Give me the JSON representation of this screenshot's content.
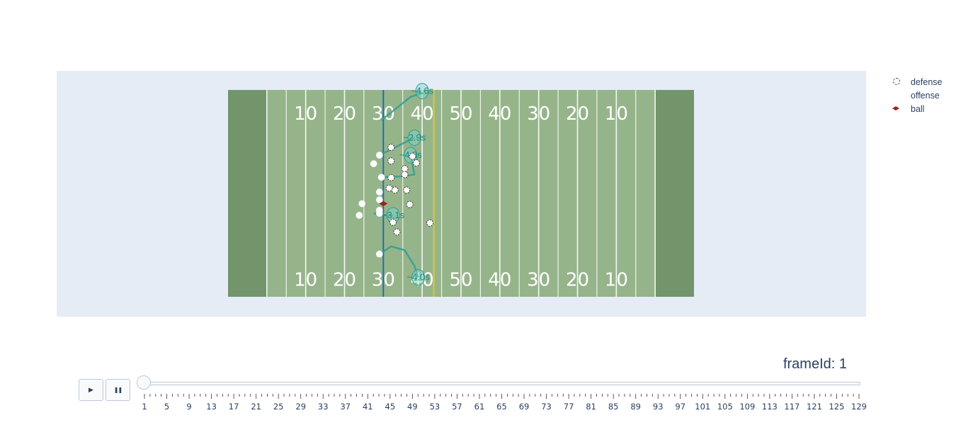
{
  "chart_data": {
    "type": "scatter",
    "title": "",
    "field": {
      "yard_numbers": [
        "10",
        "20",
        "30",
        "40",
        "50",
        "40",
        "30",
        "20",
        "10"
      ],
      "line_of_scrimmage": 40,
      "first_down_line": 53,
      "x_range": [
        0,
        120
      ],
      "y_range": [
        0,
        53.3
      ]
    },
    "series": [
      {
        "name": "defense",
        "symbol": "circle-open-dot",
        "points": [
          [
            42,
            38.5
          ],
          [
            42,
            35
          ],
          [
            45.5,
            33
          ],
          [
            48.5,
            34.5
          ],
          [
            42,
            30.7
          ],
          [
            43,
            27.5
          ],
          [
            46,
            27.5
          ],
          [
            46.8,
            23.8
          ],
          [
            45.5,
            31.5
          ],
          [
            41.5,
            28
          ],
          [
            42.5,
            19.2
          ],
          [
            43.5,
            16.7
          ],
          [
            52,
            19
          ],
          [
            47.5,
            36.2
          ]
        ]
      },
      {
        "name": "offense",
        "symbol": "circle",
        "points": [
          [
            39,
            36.5
          ],
          [
            37.5,
            34.3
          ],
          [
            39.5,
            30.8
          ],
          [
            39,
            27
          ],
          [
            39,
            25
          ],
          [
            34.5,
            24
          ],
          [
            39,
            22.3
          ],
          [
            39,
            21.5
          ],
          [
            33.8,
            21
          ],
          [
            39,
            11
          ]
        ]
      },
      {
        "name": "ball",
        "symbol": "diamond",
        "color": "#a02020",
        "points": [
          [
            40,
            24
          ]
        ]
      }
    ],
    "routes": [
      {
        "label": "~4.6s",
        "start": [
          39.5,
          45.5
        ],
        "end": [
          50,
          53
        ],
        "path": [
          [
            39.5,
            45.5
          ],
          [
            42,
            47.5
          ],
          [
            44.5,
            49.5
          ],
          [
            47,
            51.5
          ],
          [
            50,
            52.5
          ]
        ]
      },
      {
        "label": "~2.9s",
        "start": [
          39,
          36.5
        ],
        "end": [
          48,
          41
        ],
        "path": [
          [
            39,
            36.5
          ],
          [
            42,
            38
          ],
          [
            45,
            39.5
          ],
          [
            48,
            41
          ]
        ]
      },
      {
        "label": "~4.0s",
        "start": [
          39,
          30.8
        ],
        "end": [
          47,
          36.5
        ],
        "path": [
          [
            39,
            30.8
          ],
          [
            44,
            31
          ],
          [
            48,
            31.5
          ],
          [
            47.5,
            34
          ],
          [
            47,
            36.5
          ]
        ]
      },
      {
        "label": "~3.1s",
        "start": [
          37.5,
          21.5
        ],
        "end": [
          42.5,
          21
        ],
        "path": [
          [
            37.5,
            21.5
          ],
          [
            40.5,
            21
          ],
          [
            42.5,
            21
          ]
        ]
      },
      {
        "label": "~4.0s",
        "start": [
          39,
          11
        ],
        "end": [
          49,
          5
        ],
        "path": [
          [
            39,
            11
          ],
          [
            42,
            13
          ],
          [
            45.5,
            12
          ],
          [
            48,
            8
          ],
          [
            49,
            5
          ]
        ]
      }
    ],
    "legend": {
      "items": [
        "defense",
        "offense",
        "ball"
      ],
      "position": "right"
    }
  },
  "animation": {
    "frame_label": "frameId: 1",
    "current_frame": 1,
    "tick_labels": [
      "1",
      "5",
      "9",
      "13",
      "17",
      "21",
      "25",
      "29",
      "33",
      "37",
      "41",
      "45",
      "49",
      "53",
      "57",
      "61",
      "65",
      "69",
      "73",
      "77",
      "81",
      "85",
      "89",
      "93",
      "97",
      "101",
      "105",
      "109",
      "113",
      "117",
      "121",
      "125",
      "129"
    ],
    "frame_count": 129,
    "play_icon": "play-icon",
    "pause_icon": "pause-icon",
    "play_glyph": "▶",
    "pause_glyph": "❚❚"
  },
  "colors": {
    "plot_bg": "#e5ecf6",
    "field": "#96b48a",
    "endzone": "#72956c",
    "scrimmage": "#1f6fa6",
    "first_down": "#e0c63a",
    "route": "#2e9e94"
  }
}
